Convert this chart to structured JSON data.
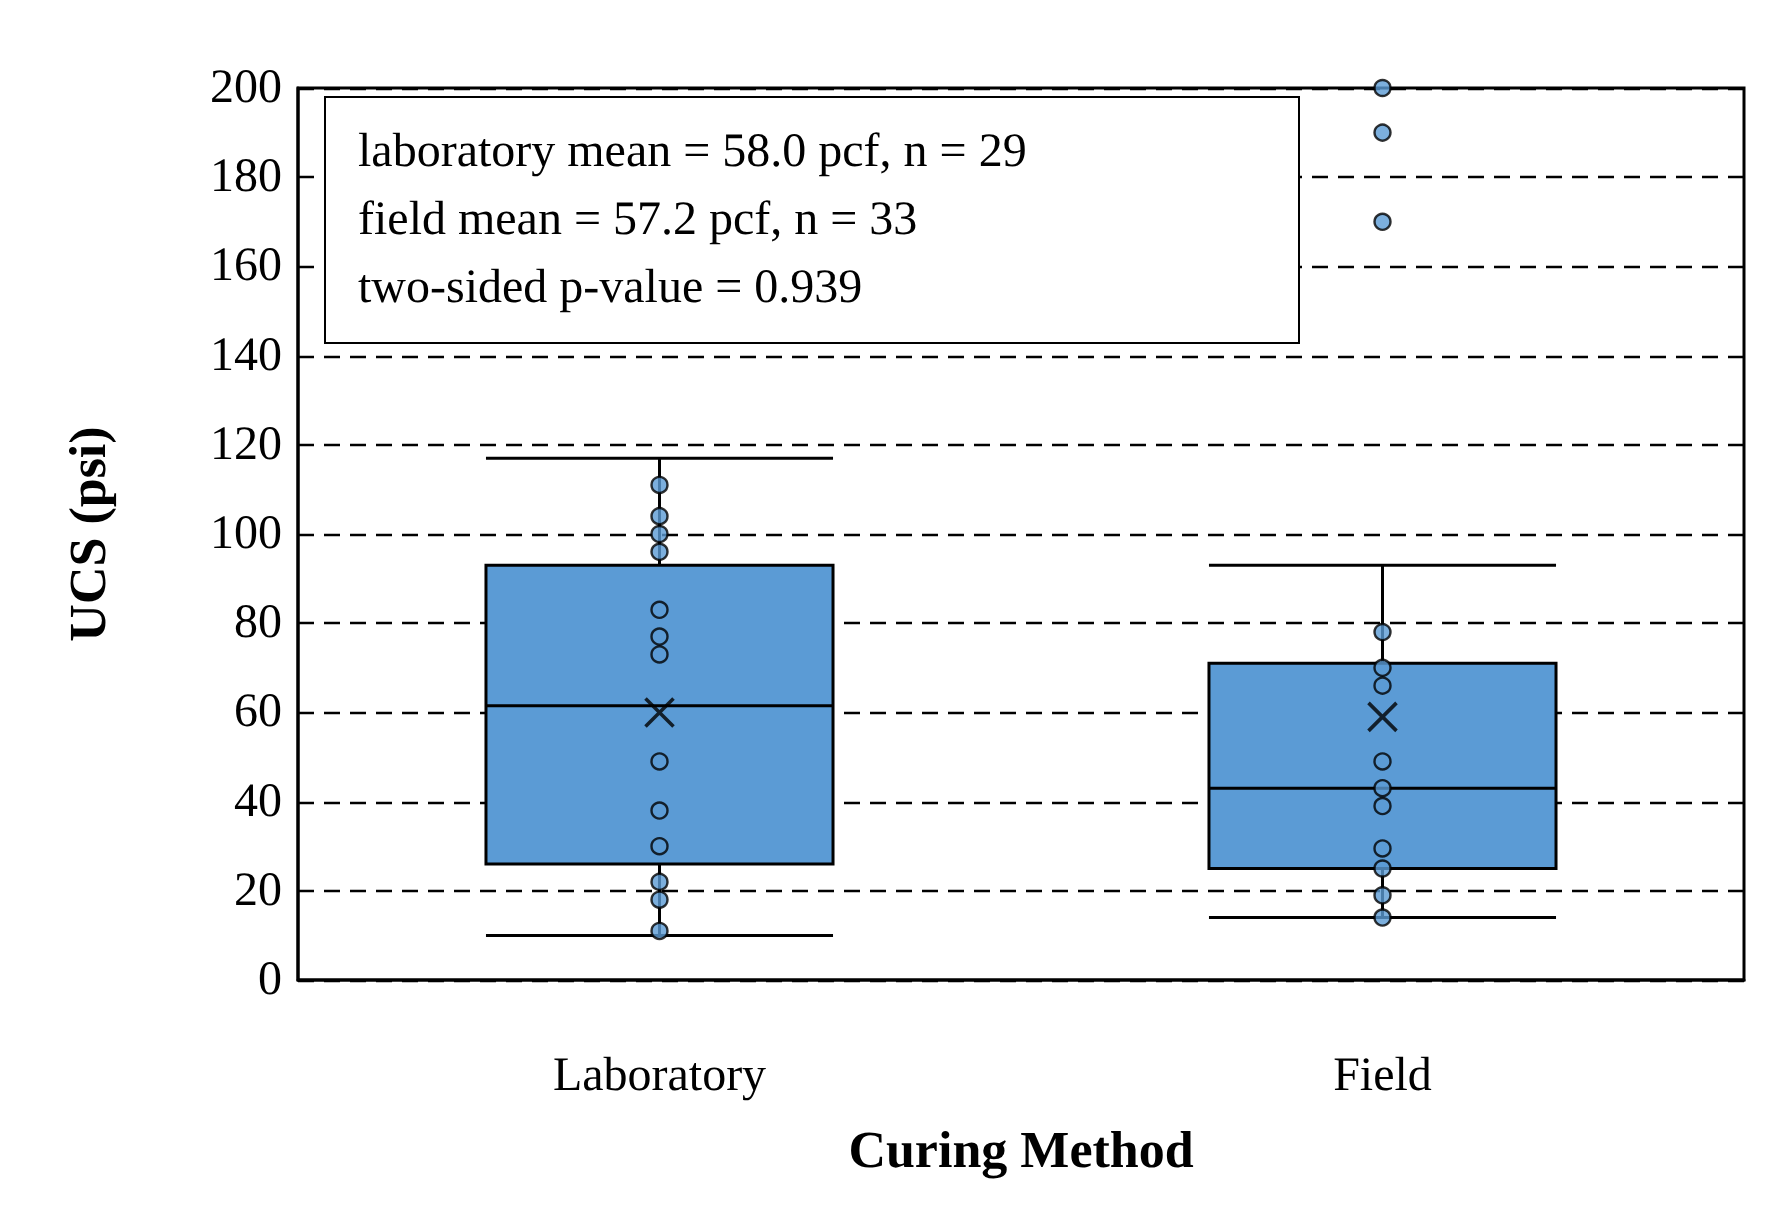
{
  "chart_data": {
    "type": "box",
    "xlabel": "Curing Method",
    "ylabel": "UCS (psi)",
    "categories": [
      "Laboratory",
      "Field"
    ],
    "color": "#5b9bd5",
    "boxes": [
      {
        "low": 10,
        "q1": 26,
        "median": 61.5,
        "q3": 93,
        "high": 117,
        "mean": 60
      },
      {
        "low": 14,
        "q1": 25,
        "median": 43,
        "q3": 71,
        "high": 93,
        "mean": 59,
        "outliers": [
          170,
          190,
          200
        ]
      }
    ],
    "series": [
      {
        "type": "scatter",
        "color": "#5b9bd5",
        "x": [
          "Laboratory",
          "Laboratory",
          "Laboratory",
          "Laboratory",
          "Laboratory",
          "Laboratory",
          "Laboratory",
          "Laboratory",
          "Laboratory",
          "Laboratory",
          "Laboratory",
          "Laboratory",
          "Laboratory",
          "Field",
          "Field",
          "Field",
          "Field",
          "Field",
          "Field",
          "Field",
          "Field",
          "Field",
          "Field"
        ],
        "values": [
          111,
          104,
          100,
          96,
          83,
          77,
          73,
          49,
          38,
          30,
          22,
          18,
          11,
          78,
          70,
          66,
          49,
          43,
          39,
          29.5,
          25,
          19,
          14
        ]
      }
    ],
    "ylim": [
      0,
      200
    ],
    "yticks": [
      0,
      20,
      40,
      60,
      80,
      100,
      120,
      140,
      160,
      180,
      200
    ],
    "grid": "y",
    "marker": "circle",
    "annotations": [
      "laboratory mean = 58.0 pcf, n = 29",
      "field mean = 57.2 pcf, n = 33",
      "two-sided p-value = 0.939"
    ]
  }
}
